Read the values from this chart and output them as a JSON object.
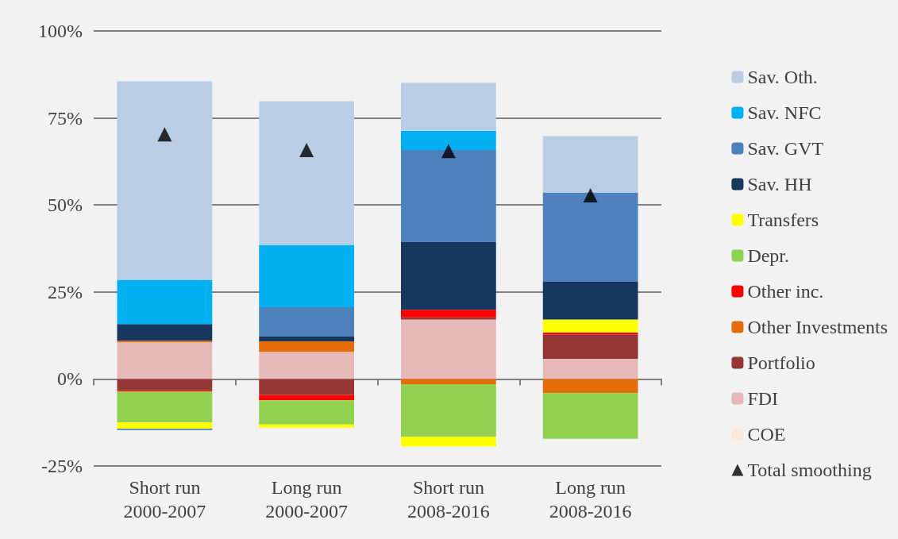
{
  "chart_data": {
    "type": "bar",
    "stacked": true,
    "grid": "y",
    "legend": "right",
    "marker": "triangle",
    "categories": [
      "Short run\n2000-2007",
      "Long run\n2000-2007",
      "Short run\n2008-2016",
      "Long run\n2008-2016"
    ],
    "ylim": [
      -25,
      100
    ],
    "yticks": [
      {
        "value": -25,
        "label": "-25%"
      },
      {
        "value": 0,
        "label": "0%"
      },
      {
        "value": 25,
        "label": "25%"
      },
      {
        "value": 50,
        "label": "50%"
      },
      {
        "value": 75,
        "label": "75%"
      },
      {
        "value": 100,
        "label": "100%"
      }
    ],
    "series": [
      {
        "name": "COE",
        "color": "#fde9d9",
        "values": [
          0,
          0,
          0,
          0
        ]
      },
      {
        "name": "FDI",
        "color": "#e6b9b8",
        "values": [
          10.5,
          7.8,
          17.1,
          5.8
        ]
      },
      {
        "name": "Portfolio",
        "color": "#953735",
        "values": [
          -3.3,
          -4.6,
          0.6,
          7.0
        ]
      },
      {
        "name": "Other Investments",
        "color": "#e46c0a",
        "values": [
          0.5,
          3.0,
          -1.5,
          -4.1
        ]
      },
      {
        "name": "Other inc.",
        "color": "#ff0000",
        "values": [
          -0.3,
          -1.5,
          2.2,
          0.5
        ]
      },
      {
        "name": "Depr.",
        "color": "#92d050",
        "values": [
          -8.9,
          -7.0,
          -15.1,
          -13.1
        ]
      },
      {
        "name": "Transfers",
        "color": "#ffff00",
        "values": [
          -1.8,
          -0.9,
          -2.8,
          3.8
        ]
      },
      {
        "name": "Sav. HH",
        "color": "#17375e",
        "values": [
          4.8,
          1.4,
          19.4,
          10.8
        ]
      },
      {
        "name": "Sav. GVT",
        "color": "#4f81bd",
        "values": [
          -0.4,
          8.4,
          26.5,
          25.7
        ]
      },
      {
        "name": "Sav. NFC",
        "color": "#00b0f0",
        "values": [
          12.7,
          17.9,
          5.5,
          0
        ]
      },
      {
        "name": "Sav. Oth.",
        "color": "#b9cde5",
        "values": [
          57.0,
          41.3,
          13.8,
          16.2
        ]
      },
      {
        "name": "Total smoothing",
        "color": "#000000",
        "type": "scatter",
        "values": [
          70.3,
          65.8,
          65.5,
          52.8
        ]
      }
    ]
  }
}
